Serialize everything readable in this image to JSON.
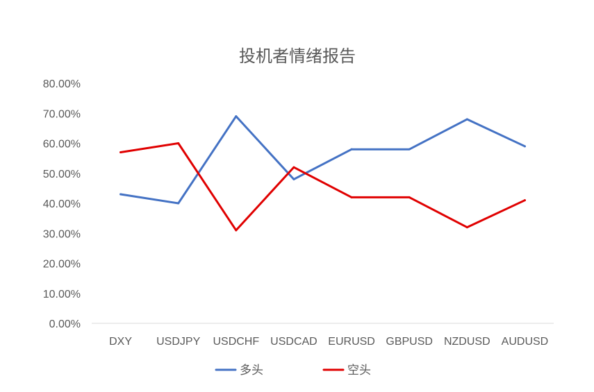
{
  "chart_data": {
    "type": "line",
    "title": "投机者情绪报告",
    "xlabel": "",
    "ylabel": "",
    "categories": [
      "DXY",
      "USDJPY",
      "USDCHF",
      "USDCAD",
      "EURUSD",
      "GBPUSD",
      "NZDUSD",
      "AUDUSD"
    ],
    "ylim": [
      0,
      0.8
    ],
    "yticks": [
      "0.00%",
      "10.00%",
      "20.00%",
      "30.00%",
      "40.00%",
      "50.00%",
      "60.00%",
      "70.00%",
      "80.00%"
    ],
    "grid": false,
    "legend_position": "bottom",
    "series": [
      {
        "name": "多头",
        "color": "#4472C4",
        "values": [
          0.43,
          0.4,
          0.69,
          0.48,
          0.58,
          0.58,
          0.68,
          0.59
        ]
      },
      {
        "name": "空头",
        "color": "#E00000",
        "values": [
          0.57,
          0.6,
          0.31,
          0.52,
          0.42,
          0.42,
          0.32,
          0.41
        ]
      }
    ]
  }
}
